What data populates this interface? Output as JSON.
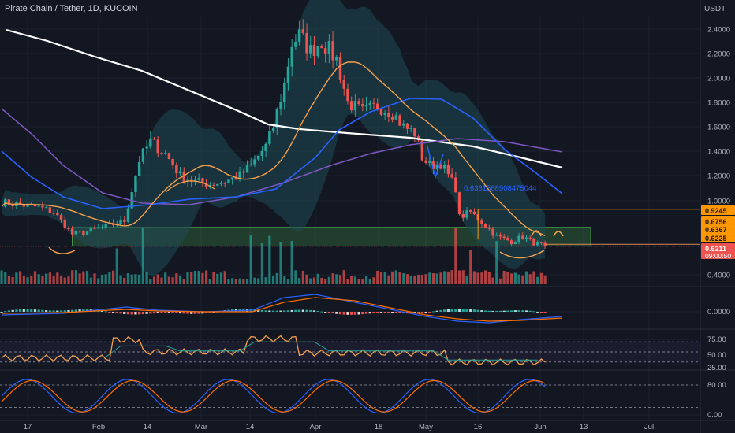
{
  "header": {
    "title": "Pirate Chain / Tether, 1D, KUCOIN"
  },
  "colors": {
    "background": "#131722",
    "grid": "#1e222d",
    "up": "#26a69a",
    "down": "#ef5350",
    "band_fill": "#1f4a55",
    "ma_white": "#ffffff",
    "ma_blue": "#2962ff",
    "ma_purple": "#7e57c2",
    "ma_orange": "#f5a04a",
    "zone": "#4caf50",
    "line_tag": "#ff9800",
    "price_tag": "#ef5350"
  },
  "chart_data": [
    {
      "type": "candlestick",
      "pane": "price",
      "title": "Pirate Chain / Tether, 1D, KUCOIN",
      "y_unit": "USDT",
      "ylim": [
        0.3,
        2.65
      ],
      "y_ticks": [
        "2.4000",
        "2.2000",
        "2.0000",
        "1.8000",
        "1.6000",
        "1.4000",
        "1.2000",
        "1.0000",
        "0.4000"
      ],
      "x_ticks": [
        "17",
        "Feb",
        "14",
        "Mar",
        "14",
        "Apr",
        "18",
        "May",
        "16",
        "Jun",
        "13",
        "Jul"
      ],
      "close_path": [
        [
          0,
          0.98
        ],
        [
          10,
          0.94
        ],
        [
          14,
          0.9
        ],
        [
          19,
          0.72
        ],
        [
          23,
          0.74
        ],
        [
          28,
          0.78
        ],
        [
          33,
          0.83
        ],
        [
          37,
          1.33
        ],
        [
          40,
          1.48
        ],
        [
          44,
          1.38
        ],
        [
          48,
          1.2
        ],
        [
          52,
          1.15
        ],
        [
          56,
          1.13
        ],
        [
          60,
          1.15
        ],
        [
          64,
          1.2
        ],
        [
          67,
          1.28
        ],
        [
          71,
          1.44
        ],
        [
          73,
          1.6
        ],
        [
          76,
          1.95
        ],
        [
          78,
          2.28
        ],
        [
          80,
          2.35
        ],
        [
          83,
          2.22
        ],
        [
          86,
          2.3
        ],
        [
          90,
          2.15
        ],
        [
          93,
          1.8
        ],
        [
          97,
          1.72
        ],
        [
          101,
          1.77
        ],
        [
          105,
          1.72
        ],
        [
          108,
          1.6
        ],
        [
          111,
          1.55
        ],
        [
          113,
          1.35
        ],
        [
          115,
          1.28
        ],
        [
          118,
          1.3
        ],
        [
          120,
          1.2
        ],
        [
          122,
          1.1
        ],
        [
          123,
          0.86
        ],
        [
          126,
          0.9
        ],
        [
          130,
          0.79
        ],
        [
          133,
          0.7
        ],
        [
          137,
          0.66
        ],
        [
          140,
          0.7
        ],
        [
          143,
          0.65
        ],
        [
          146,
          0.6211
        ]
      ],
      "price_labels": [
        {
          "text": "0.9245",
          "value": 0.9245,
          "color": "#ff9800"
        },
        {
          "text": "0.6756",
          "value": 0.6756,
          "color": "#ff9800"
        },
        {
          "text": "0.6367",
          "value": 0.6367,
          "color": "#ff9800"
        },
        {
          "text": "0.6225",
          "value": 0.6225,
          "color": "#ff9800"
        },
        {
          "text": "0.6211",
          "value": 0.6211,
          "color": "#ef5350",
          "countdown": "09:00:50"
        }
      ],
      "annotations": [
        {
          "text": "0.6361568908475044",
          "value": 0.6361568908475044
        }
      ],
      "horizontal_lines": [
        0.9245,
        0.6756,
        0.6367
      ],
      "zone": {
        "from": 0.6225,
        "to": 0.7754
      }
    },
    {
      "type": "histogram",
      "pane": "macd",
      "y_ticks": [
        "0.0000"
      ]
    },
    {
      "type": "line",
      "pane": "rsi",
      "y_ticks": [
        "75.00",
        "50.00",
        "25.00"
      ],
      "levels": [
        70,
        30
      ]
    },
    {
      "type": "line",
      "pane": "stochastic",
      "y_ticks": [
        "80.00",
        "0.00"
      ],
      "levels": [
        80,
        20
      ]
    }
  ]
}
